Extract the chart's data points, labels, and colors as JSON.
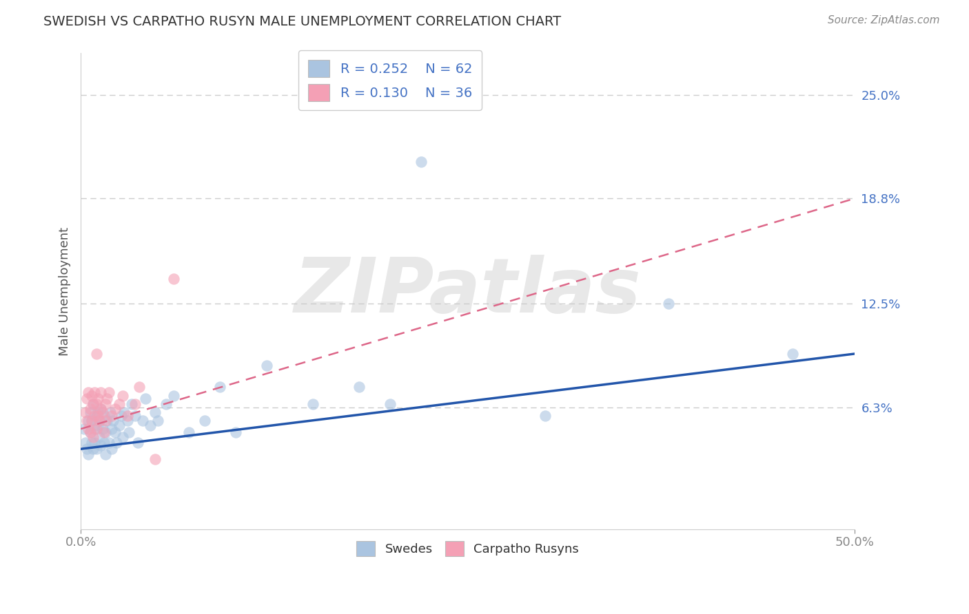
{
  "title": "SWEDISH VS CARPATHO RUSYN MALE UNEMPLOYMENT CORRELATION CHART",
  "source_text": "Source: ZipAtlas.com",
  "ylabel": "Male Unemployment",
  "xlim": [
    0.0,
    0.5
  ],
  "ylim": [
    -0.01,
    0.275
  ],
  "ytick_labels": [
    "6.3%",
    "12.5%",
    "18.8%",
    "25.0%"
  ],
  "ytick_vals": [
    0.063,
    0.125,
    0.188,
    0.25
  ],
  "swedish_R": 0.252,
  "swedish_N": 62,
  "rusyn_R": 0.13,
  "rusyn_N": 36,
  "swedish_color": "#aac4e0",
  "rusyn_color": "#f4a0b5",
  "swedish_line_color": "#2255aa",
  "rusyn_line_color": "#dd6688",
  "watermark": "ZIPatlas",
  "background_color": "#ffffff",
  "grid_color": "#cccccc",
  "swedish_x": [
    0.002,
    0.003,
    0.004,
    0.005,
    0.005,
    0.006,
    0.006,
    0.007,
    0.007,
    0.008,
    0.008,
    0.009,
    0.009,
    0.01,
    0.01,
    0.011,
    0.011,
    0.012,
    0.012,
    0.013,
    0.013,
    0.014,
    0.015,
    0.015,
    0.016,
    0.016,
    0.017,
    0.018,
    0.019,
    0.02,
    0.02,
    0.021,
    0.022,
    0.023,
    0.025,
    0.026,
    0.027,
    0.028,
    0.03,
    0.031,
    0.033,
    0.035,
    0.037,
    0.04,
    0.042,
    0.045,
    0.048,
    0.05,
    0.055,
    0.06,
    0.07,
    0.08,
    0.09,
    0.1,
    0.12,
    0.15,
    0.18,
    0.2,
    0.22,
    0.3,
    0.38,
    0.46
  ],
  "swedish_y": [
    0.05,
    0.042,
    0.038,
    0.055,
    0.035,
    0.048,
    0.06,
    0.042,
    0.055,
    0.038,
    0.065,
    0.05,
    0.042,
    0.058,
    0.038,
    0.052,
    0.06,
    0.045,
    0.055,
    0.04,
    0.062,
    0.05,
    0.042,
    0.058,
    0.035,
    0.048,
    0.055,
    0.042,
    0.06,
    0.05,
    0.038,
    0.055,
    0.048,
    0.042,
    0.052,
    0.058,
    0.045,
    0.06,
    0.055,
    0.048,
    0.065,
    0.058,
    0.042,
    0.055,
    0.068,
    0.052,
    0.06,
    0.055,
    0.065,
    0.07,
    0.048,
    0.055,
    0.075,
    0.048,
    0.088,
    0.065,
    0.075,
    0.065,
    0.21,
    0.058,
    0.125,
    0.095
  ],
  "rusyn_x": [
    0.003,
    0.004,
    0.004,
    0.005,
    0.005,
    0.006,
    0.006,
    0.007,
    0.007,
    0.008,
    0.008,
    0.009,
    0.009,
    0.01,
    0.01,
    0.01,
    0.011,
    0.011,
    0.012,
    0.013,
    0.013,
    0.014,
    0.015,
    0.016,
    0.016,
    0.017,
    0.018,
    0.02,
    0.022,
    0.025,
    0.027,
    0.03,
    0.035,
    0.038,
    0.048,
    0.06
  ],
  "rusyn_y": [
    0.06,
    0.055,
    0.068,
    0.05,
    0.072,
    0.048,
    0.062,
    0.055,
    0.07,
    0.045,
    0.065,
    0.058,
    0.072,
    0.05,
    0.065,
    0.095,
    0.058,
    0.068,
    0.055,
    0.062,
    0.072,
    0.06,
    0.048,
    0.065,
    0.055,
    0.068,
    0.072,
    0.058,
    0.062,
    0.065,
    0.07,
    0.058,
    0.065,
    0.075,
    0.032,
    0.14
  ],
  "sw_trend_x": [
    0.0,
    0.5
  ],
  "sw_trend_y": [
    0.038,
    0.095
  ],
  "ru_trend_x": [
    0.0,
    0.5
  ],
  "ru_trend_y": [
    0.05,
    0.188
  ]
}
